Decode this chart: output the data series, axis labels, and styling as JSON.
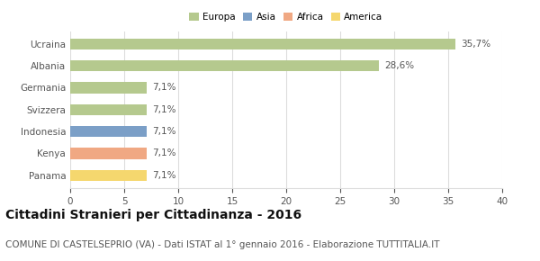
{
  "categories": [
    "Panama",
    "Kenya",
    "Indonesia",
    "Svizzera",
    "Germania",
    "Albania",
    "Ucraina"
  ],
  "values": [
    7.1,
    7.1,
    7.1,
    7.1,
    7.1,
    28.6,
    35.7
  ],
  "labels": [
    "7,1%",
    "7,1%",
    "7,1%",
    "7,1%",
    "7,1%",
    "28,6%",
    "35,7%"
  ],
  "colors": [
    "#f5d76e",
    "#f0a883",
    "#7b9fc7",
    "#b5c98e",
    "#b5c98e",
    "#b5c98e",
    "#b5c98e"
  ],
  "legend": [
    {
      "label": "Europa",
      "color": "#b5c98e"
    },
    {
      "label": "Asia",
      "color": "#7b9fc7"
    },
    {
      "label": "Africa",
      "color": "#f0a883"
    },
    {
      "label": "America",
      "color": "#f5d76e"
    }
  ],
  "xlim": [
    0,
    40
  ],
  "xticks": [
    0,
    5,
    10,
    15,
    20,
    25,
    30,
    35,
    40
  ],
  "title": "Cittadini Stranieri per Cittadinanza - 2016",
  "subtitle": "COMUNE DI CASTELSEPRIO (VA) - Dati ISTAT al 1° gennaio 2016 - Elaborazione TUTTITALIA.IT",
  "title_fontsize": 10,
  "subtitle_fontsize": 7.5,
  "label_fontsize": 7.5,
  "tick_fontsize": 7.5,
  "bar_height": 0.5,
  "background_color": "#ffffff",
  "grid_color": "#dddddd"
}
